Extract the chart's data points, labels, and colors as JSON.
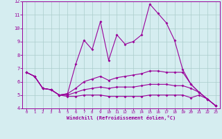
{
  "xlabel": "Windchill (Refroidissement éolien,°C)",
  "x": [
    0,
    1,
    2,
    3,
    4,
    5,
    6,
    7,
    8,
    9,
    10,
    11,
    12,
    13,
    14,
    15,
    16,
    17,
    18,
    19,
    20,
    21,
    22,
    23
  ],
  "line1": [
    6.7,
    6.4,
    5.5,
    5.4,
    5.0,
    5.1,
    7.3,
    9.1,
    8.4,
    10.5,
    7.6,
    9.5,
    8.8,
    9.0,
    9.5,
    11.8,
    11.1,
    10.4,
    9.1,
    6.9,
    5.8,
    5.2,
    4.7,
    4.2
  ],
  "line2": [
    6.7,
    6.4,
    5.5,
    5.4,
    5.0,
    5.1,
    5.5,
    6.0,
    6.2,
    6.4,
    6.1,
    6.3,
    6.4,
    6.5,
    6.6,
    6.8,
    6.8,
    6.7,
    6.7,
    6.7,
    5.8,
    5.2,
    4.7,
    4.2
  ],
  "line3": [
    6.7,
    6.4,
    5.5,
    5.4,
    5.0,
    5.0,
    5.2,
    5.4,
    5.5,
    5.6,
    5.5,
    5.6,
    5.6,
    5.6,
    5.7,
    5.8,
    5.8,
    5.8,
    5.7,
    5.7,
    5.5,
    5.2,
    4.7,
    4.2
  ],
  "line4": [
    6.7,
    6.4,
    5.5,
    5.4,
    5.0,
    4.9,
    4.9,
    5.0,
    5.0,
    5.0,
    4.9,
    4.9,
    4.9,
    4.9,
    4.9,
    5.0,
    5.0,
    5.0,
    5.0,
    5.0,
    4.8,
    5.0,
    4.7,
    4.2
  ],
  "color": "#990099",
  "bg_color": "#d5edf0",
  "grid_color": "#aacccc",
  "ylim": [
    4,
    12
  ],
  "yticks": [
    4,
    5,
    6,
    7,
    8,
    9,
    10,
    11,
    12
  ],
  "xlim": [
    -0.5,
    23.5
  ]
}
